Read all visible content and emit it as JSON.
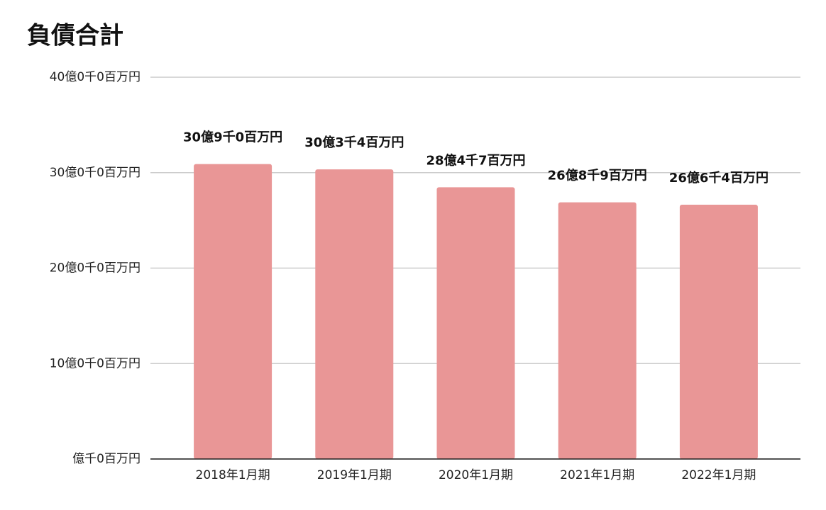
{
  "chart_data": {
    "type": "bar",
    "title": "負債合計",
    "categories": [
      "2018年1月期",
      "2019年1月期",
      "2020年1月期",
      "2021年1月期",
      "2022年1月期"
    ],
    "values": [
      3090000000,
      3034000000,
      2847000000,
      2689000000,
      2664000000
    ],
    "value_labels": [
      "30億9千0百万円",
      "30億3千4百万円",
      "28億4千7百万円",
      "26億8千9百万円",
      "26億6千4百万円"
    ],
    "color": "#e99696",
    "ylim": [
      0,
      4000000000
    ],
    "yticks": [
      {
        "value": 0,
        "label": "億千0百万円"
      },
      {
        "value": 1000000000,
        "label": "10億0千0百万円"
      },
      {
        "value": 2000000000,
        "label": "20億0千0百万円"
      },
      {
        "value": 3000000000,
        "label": "30億0千0百万円"
      },
      {
        "value": 4000000000,
        "label": "40億0千0百万円"
      }
    ],
    "grid": true
  }
}
